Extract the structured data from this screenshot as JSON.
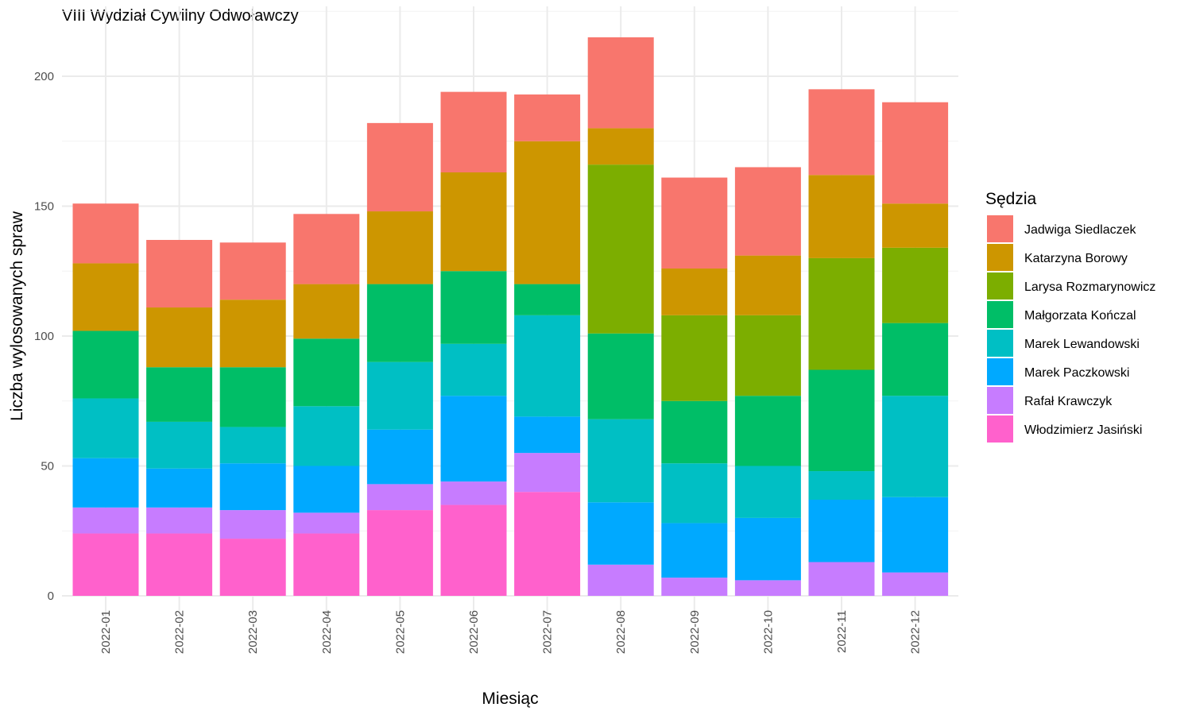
{
  "chart_data": {
    "type": "bar",
    "stacked": true,
    "title": "VIII Wydział Cywilny Odwoławczy",
    "xlabel": "Miesiąc",
    "ylabel": "Liczba wylosowanych spraw",
    "ylim": [
      0,
      225
    ],
    "yticks": [
      0,
      50,
      100,
      150,
      200
    ],
    "grid": true,
    "legend_title": "Sędzia",
    "legend_position": "right",
    "categories": [
      "2022-01",
      "2022-02",
      "2022-03",
      "2022-04",
      "2022-05",
      "2022-06",
      "2022-07",
      "2022-08",
      "2022-09",
      "2022-10",
      "2022-11",
      "2022-12"
    ],
    "series": [
      {
        "name": "Jadwiga Siedlaczek",
        "color": "#F8766D",
        "values": [
          23,
          26,
          22,
          27,
          34,
          31,
          18,
          35,
          35,
          34,
          33,
          39
        ]
      },
      {
        "name": "Katarzyna Borowy",
        "color": "#CD9600",
        "values": [
          26,
          23,
          26,
          21,
          28,
          38,
          55,
          14,
          18,
          23,
          32,
          17
        ]
      },
      {
        "name": "Larysa Rozmarynowicz",
        "color": "#7CAE00",
        "values": [
          0,
          0,
          0,
          0,
          0,
          0,
          0,
          65,
          33,
          31,
          43,
          29
        ]
      },
      {
        "name": "Małgorzata Kończal",
        "color": "#00BE67",
        "values": [
          26,
          21,
          23,
          26,
          30,
          28,
          12,
          33,
          24,
          27,
          39,
          28
        ]
      },
      {
        "name": "Marek Lewandowski",
        "color": "#00BFC4",
        "values": [
          23,
          18,
          14,
          23,
          26,
          20,
          39,
          32,
          23,
          20,
          11,
          39
        ]
      },
      {
        "name": "Marek Paczkowski",
        "color": "#00A9FF",
        "values": [
          19,
          15,
          18,
          18,
          21,
          33,
          14,
          24,
          21,
          24,
          24,
          29
        ]
      },
      {
        "name": "Rafał Krawczyk",
        "color": "#C77CFF",
        "values": [
          10,
          10,
          11,
          8,
          10,
          9,
          15,
          12,
          7,
          6,
          13,
          9
        ]
      },
      {
        "name": "Włodzimierz Jasiński",
        "color": "#FF61CC",
        "values": [
          24,
          24,
          22,
          24,
          33,
          35,
          40,
          0,
          0,
          0,
          0,
          0
        ]
      }
    ]
  }
}
